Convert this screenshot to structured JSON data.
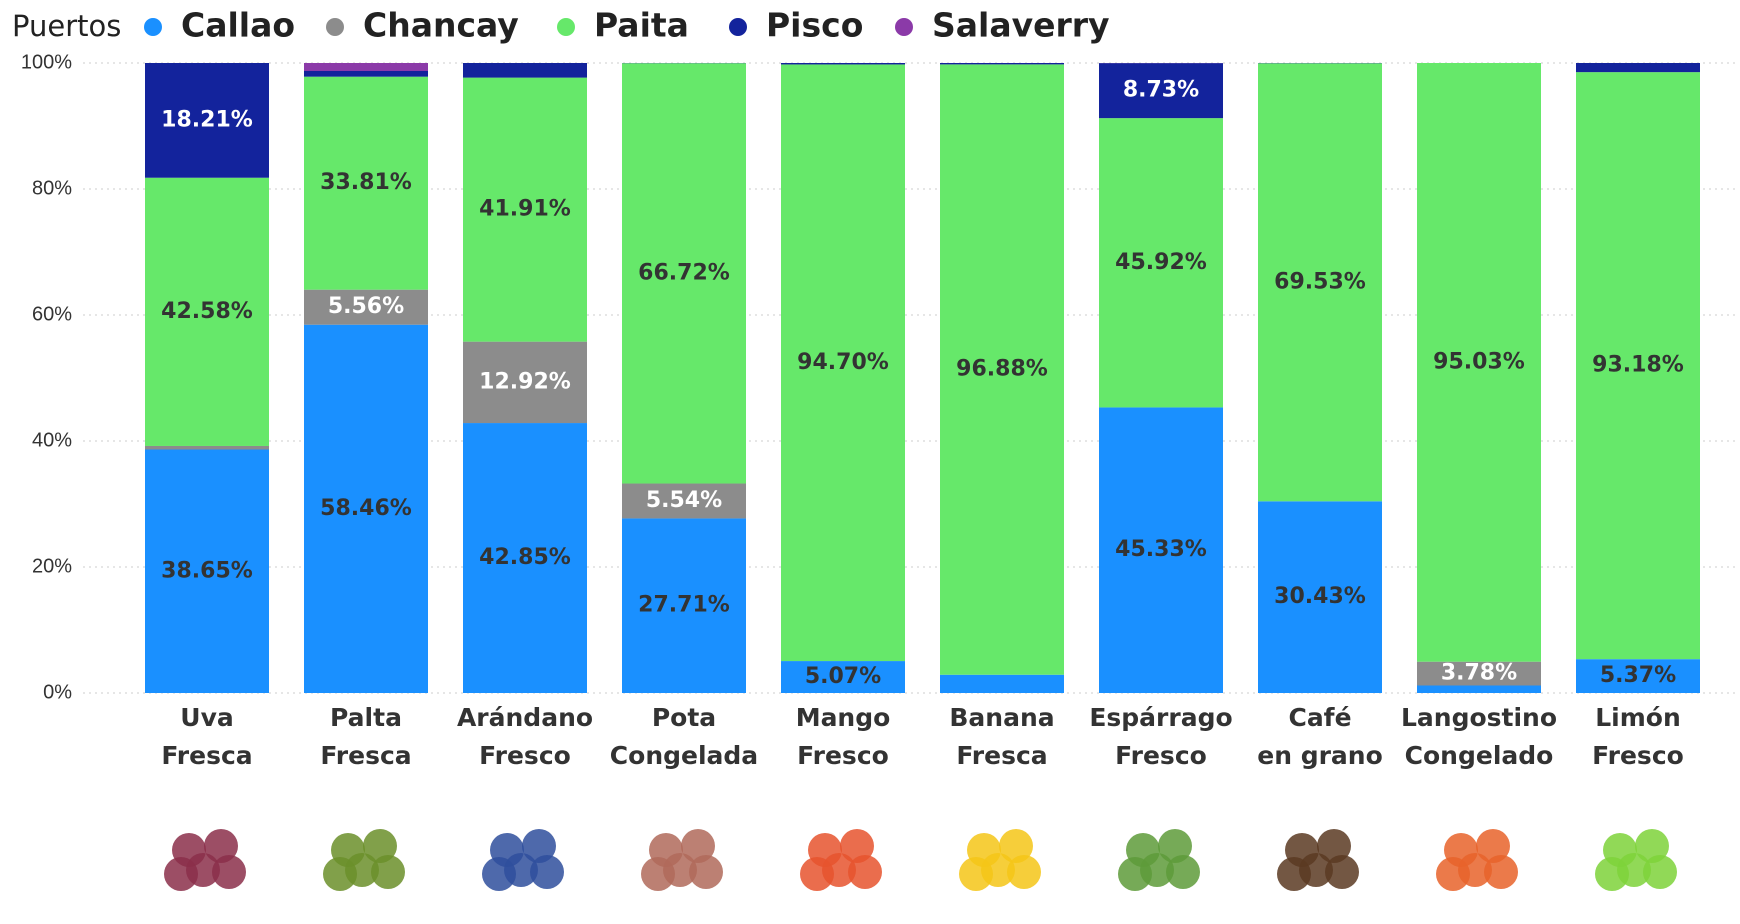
{
  "chart_data": {
    "type": "stacked_bar",
    "legend_title": "Puertos",
    "categories": [
      "Uva Fresca",
      "Palta Fresca",
      "Arándano Fresco",
      "Pota Congelada",
      "Mango Fresco",
      "Banana Fresca",
      "Espárrago Fresco",
      "Café en grano",
      "Langostino Congelado",
      "Limón Fresco"
    ],
    "series": [
      {
        "name": "Callao",
        "color": "#1a90ff",
        "label_color": "#333333",
        "values": [
          38.65,
          58.46,
          42.85,
          27.71,
          5.07,
          2.9,
          45.33,
          30.43,
          1.19,
          5.37
        ],
        "value_labels": [
          "38.65%",
          "58.46%",
          "42.85%",
          "27.71%",
          "5.07%",
          null,
          "45.33%",
          "30.43%",
          null,
          "5.37%"
        ]
      },
      {
        "name": "Chancay",
        "color": "#8c8c8c",
        "label_color": "#ffffff",
        "values": [
          0.56,
          5.56,
          12.92,
          5.54,
          0,
          0,
          0,
          0,
          3.78,
          0
        ],
        "value_labels": [
          null,
          "5.56%",
          "12.92%",
          "5.54%",
          null,
          null,
          null,
          null,
          "3.78%",
          null
        ]
      },
      {
        "name": "Paita",
        "color": "#66e86a",
        "label_color": "#333333",
        "values": [
          42.58,
          33.81,
          41.91,
          66.72,
          94.7,
          96.88,
          45.92,
          69.53,
          95.03,
          93.18
        ],
        "value_labels": [
          "42.58%",
          "33.81%",
          "41.91%",
          "66.72%",
          "94.70%",
          "96.88%",
          "45.92%",
          "69.53%",
          "95.03%",
          "93.18%"
        ]
      },
      {
        "name": "Pisco",
        "color": "#13239c",
        "label_color": "#ffffff",
        "values": [
          18.21,
          0.9,
          2.32,
          0.03,
          0.23,
          0.22,
          8.73,
          0.04,
          0,
          1.45
        ],
        "value_labels": [
          "18.21%",
          null,
          null,
          null,
          null,
          null,
          "8.73%",
          null,
          null,
          null
        ]
      },
      {
        "name": "Salaverry",
        "color": "#8b3aa8",
        "label_color": "#ffffff",
        "values": [
          0,
          1.27,
          0,
          0,
          0,
          0,
          0.02,
          0,
          0,
          0
        ],
        "value_labels": [
          null,
          null,
          null,
          null,
          null,
          null,
          null,
          null,
          null,
          null
        ]
      }
    ],
    "ylim": [
      0,
      100
    ],
    "yticks": [
      {
        "value": 0,
        "label": "0%"
      },
      {
        "value": 20,
        "label": "20%"
      },
      {
        "value": 40,
        "label": "40%"
      },
      {
        "value": 60,
        "label": "60%"
      },
      {
        "value": 80,
        "label": "80%"
      },
      {
        "value": 100,
        "label": "100%"
      }
    ],
    "grid": true
  }
}
